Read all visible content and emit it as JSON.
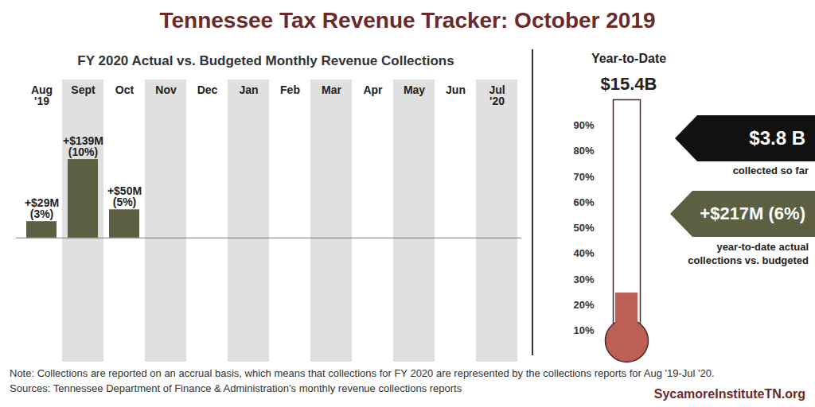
{
  "title": "Tennessee Tax Revenue Tracker: October 2019",
  "chart_data": [
    {
      "type": "bar",
      "title": "FY 2020 Actual vs. Budgeted Monthly Revenue Collections",
      "categories": [
        "Aug '19",
        "Sept",
        "Oct",
        "Nov",
        "Dec",
        "Jan",
        "Feb",
        "Mar",
        "Apr",
        "May",
        "Jun",
        "Jul '20"
      ],
      "values": [
        29,
        139,
        50,
        null,
        null,
        null,
        null,
        null,
        null,
        null,
        null,
        null
      ],
      "value_labels": [
        "+$29M (3%)",
        "+$139M (10%)",
        "+$50M (5%)",
        null,
        null,
        null,
        null,
        null,
        null,
        null,
        null,
        null
      ],
      "data_labels": true,
      "color": "#5c5f41",
      "ylim": [
        -220,
        280
      ],
      "tick_labels": "x"
    },
    {
      "type": "thermometer",
      "title": "Year-to-Date",
      "subtitle": "$15.4B",
      "value": 24.7,
      "color": "#bd5f55",
      "ylim": [
        0,
        100
      ],
      "yticks": [
        {
          "value": 10,
          "label": "10%"
        },
        {
          "value": 20,
          "label": "20%"
        },
        {
          "value": 30,
          "label": "30%"
        },
        {
          "value": 40,
          "label": "40%"
        },
        {
          "value": 50,
          "label": "50%"
        },
        {
          "value": 60,
          "label": "60%"
        },
        {
          "value": 70,
          "label": "70%"
        },
        {
          "value": 80,
          "label": "80%"
        },
        {
          "value": 90,
          "label": "90%"
        }
      ],
      "annotations": [
        {
          "label": "$3.8 B",
          "text": "collected so far",
          "color": "#111111"
        },
        {
          "label": "+$217M (6%)",
          "text": "year-to-date actual collections vs. budgeted",
          "color": "#5c5f41"
        }
      ]
    }
  ],
  "notes": [
    "Note: Collections are reported on an accrual basis, which means that collections for FY 2020 are represented by the collections reports for Aug '19-Jul '20.",
    "Sources: Tennessee Department of Finance & Administration’s monthly revenue collections reports"
  ],
  "credit": "SycamoreInstituteTN.org"
}
